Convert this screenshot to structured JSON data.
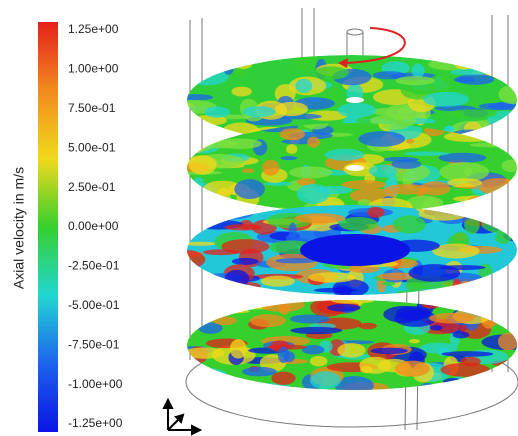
{
  "chart_data": {
    "type": "contour",
    "ylabel": "Axial velocity in m/s",
    "ylim": [
      -1.25,
      1.25
    ],
    "yticks": [
      {
        "value": 1.25,
        "label": "1.25e+00"
      },
      {
        "value": 1.0,
        "label": "1.00e+00"
      },
      {
        "value": 0.75,
        "label": "7.50e-01"
      },
      {
        "value": 0.5,
        "label": "5.00e-01"
      },
      {
        "value": 0.25,
        "label": "2.50e-01"
      },
      {
        "value": 0,
        "label": "0.00e+00"
      },
      {
        "value": -0.25,
        "label": "-2.50e-01"
      },
      {
        "value": -0.5,
        "label": "-5.00e-01"
      },
      {
        "value": -0.75,
        "label": "-7.50e-01"
      },
      {
        "value": -1.0,
        "label": "-1.00e+00"
      },
      {
        "value": -1.25,
        "label": "-1.25e+00"
      }
    ],
    "colormap": [
      "#e5201a",
      "#f28a1e",
      "#f1d91c",
      "#36d02e",
      "#22d6d2",
      "#1d63ee",
      "#0a14e4"
    ]
  }
}
